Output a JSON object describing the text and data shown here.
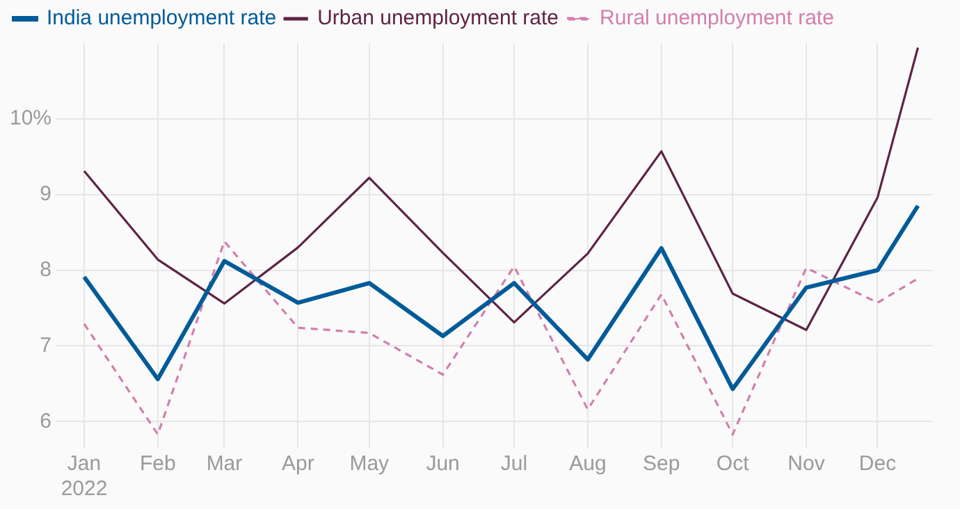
{
  "chart_data": {
    "type": "line",
    "x": [
      "2022-01",
      "2022-02",
      "2022-03",
      "2022-04",
      "2022-05",
      "2022-06",
      "2022-07",
      "2022-08",
      "2022-09",
      "2022-10",
      "2022-11",
      "2022-12",
      "2022-12-18"
    ],
    "series": [
      {
        "name": "India unemployment rate",
        "color": "#005b99",
        "line_style": "solid",
        "values": [
          7.91,
          6.56,
          8.12,
          7.57,
          7.83,
          7.13,
          7.83,
          6.82,
          8.29,
          6.43,
          7.77,
          8.0,
          8.85
        ]
      },
      {
        "name": "Urban unemployment rate",
        "color": "#5e2445",
        "line_style": "solid",
        "values": [
          9.31,
          8.14,
          7.56,
          8.3,
          9.22,
          8.23,
          7.31,
          8.22,
          9.57,
          7.69,
          7.21,
          8.96,
          10.94
        ]
      },
      {
        "name": "Rural unemployment rate",
        "color": "#d17fae",
        "line_style": "dashed",
        "values": [
          7.29,
          5.83,
          8.38,
          7.24,
          7.17,
          6.62,
          8.05,
          6.16,
          7.68,
          5.83,
          8.03,
          7.57,
          7.89
        ]
      }
    ],
    "ylim": [
      5.8,
      11.0
    ],
    "yticks": [
      6,
      7,
      8,
      9,
      {
        "value": 10,
        "label": "10%"
      }
    ],
    "xlim": [
      "2021-12-20",
      "2022-12-24"
    ],
    "xticks": [
      {
        "value": "2022-01",
        "label": "Jan\n2022"
      },
      {
        "value": "2022-02",
        "label": "Feb"
      },
      {
        "value": "2022-03",
        "label": "Mar"
      },
      {
        "value": "2022-04",
        "label": "Apr"
      },
      {
        "value": "2022-05",
        "label": "May"
      },
      {
        "value": "2022-06",
        "label": "Jun"
      },
      {
        "value": "2022-07",
        "label": "Jul"
      },
      {
        "value": "2022-08",
        "label": "Aug"
      },
      {
        "value": "2022-09",
        "label": "Sep"
      },
      {
        "value": "2022-10",
        "label": "Oct"
      },
      {
        "value": "2022-11",
        "label": "Nov"
      },
      {
        "value": "2022-12",
        "label": "Dec"
      }
    ],
    "grid": true,
    "legend": "top left",
    "marker": "none"
  }
}
